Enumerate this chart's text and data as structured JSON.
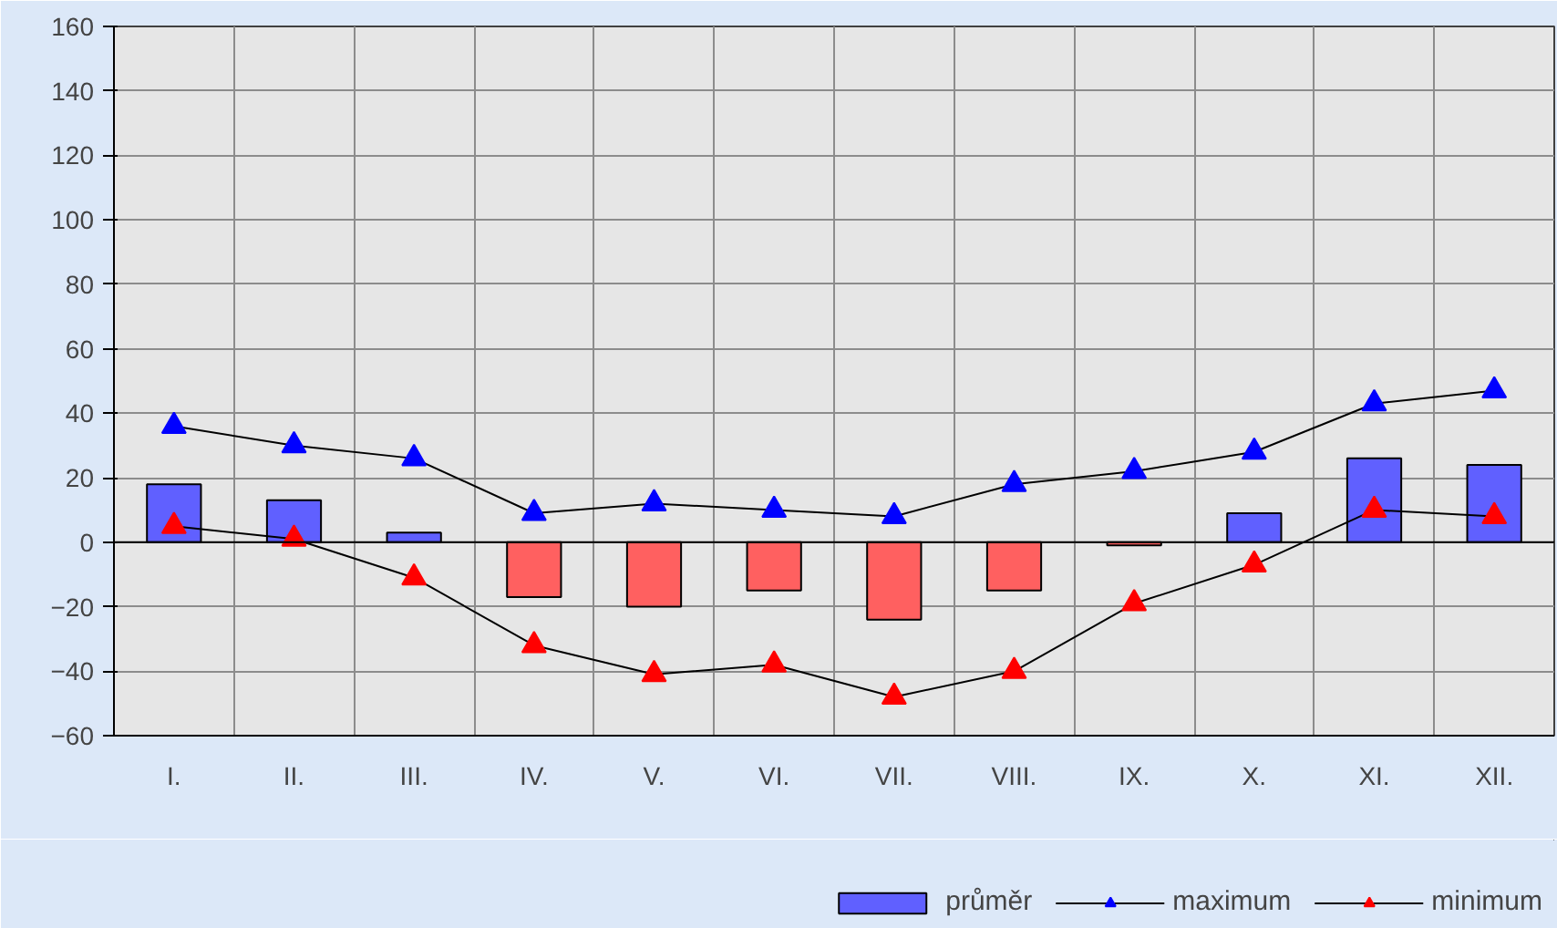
{
  "chart_data": {
    "type": "bar",
    "categories": [
      "I.",
      "II.",
      "III.",
      "IV.",
      "V.",
      "VI.",
      "VII.",
      "VIII.",
      "IX.",
      "X.",
      "XI.",
      "XII."
    ],
    "series": [
      {
        "name": "průměr",
        "colors": [
          "#6060ff",
          "#6060ff",
          "#6060ff",
          "#ff6060",
          "#ff6060",
          "#ff6060",
          "#ff6060",
          "#ff6060",
          "#ff6060",
          "#6060ff",
          "#6060ff",
          "#6060ff"
        ],
        "values": [
          18,
          13,
          3,
          -17,
          -20,
          -15,
          -24,
          -15,
          -1,
          9,
          26,
          24
        ]
      },
      {
        "name": "maximum",
        "type": "line",
        "color": "#0000ff",
        "values": [
          36,
          30,
          26,
          9,
          12,
          10,
          8,
          18,
          22,
          28,
          43,
          47
        ]
      },
      {
        "name": "minimum",
        "type": "line",
        "color": "#ff0000",
        "values": [
          5,
          1,
          -11,
          -32,
          -41,
          -38,
          -48,
          -40,
          -19,
          -7,
          10,
          8
        ]
      }
    ],
    "ylim": [
      -60,
      160
    ],
    "yticks": [
      -60,
      -40,
      -20,
      0,
      20,
      40,
      60,
      80,
      100,
      120,
      140,
      160
    ],
    "grid": true,
    "legend": "bottom right",
    "marker": "triangle"
  }
}
